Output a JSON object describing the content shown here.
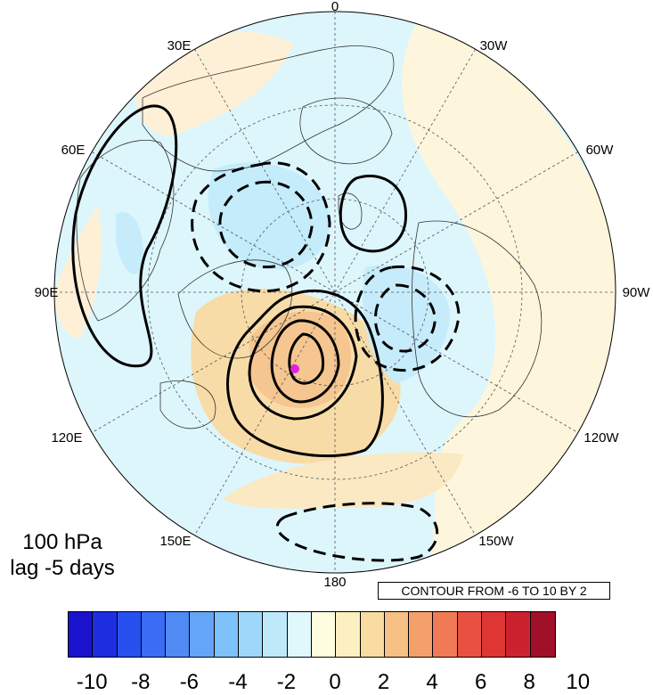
{
  "map": {
    "projection": "north-polar-stereographic",
    "longitude_labels": {
      "top": "0",
      "top_left_30": "30E",
      "top_right_30": "30W",
      "left_60": "60E",
      "right_60": "60W",
      "left_90": "90E",
      "right_90": "90W",
      "left_120": "120E",
      "right_120": "120W",
      "left_150": "150E",
      "right_150": "150W",
      "bottom": "180"
    },
    "marker_color": "#e020e0"
  },
  "panel": {
    "level": "100 hPa",
    "lag": "lag -5 days"
  },
  "contour_info": "CONTOUR FROM -6 TO 10 BY 2",
  "colorbar": {
    "colors": [
      "#1a12cc",
      "#1c2ee0",
      "#2750f0",
      "#3a6cf5",
      "#4f8af5",
      "#64a5f7",
      "#7dc2fa",
      "#9dd8fb",
      "#bde9fb",
      "#dff8fc",
      "#fffde0",
      "#fcefc0",
      "#f8dca0",
      "#f7c085",
      "#f4a06a",
      "#f07a55",
      "#ea5042",
      "#e03535",
      "#cc2230",
      "#a0102a"
    ],
    "ticks": [
      "-10",
      "-8",
      "-6",
      "-4",
      "-2",
      "0",
      "2",
      "4",
      "6",
      "8",
      "10"
    ]
  }
}
